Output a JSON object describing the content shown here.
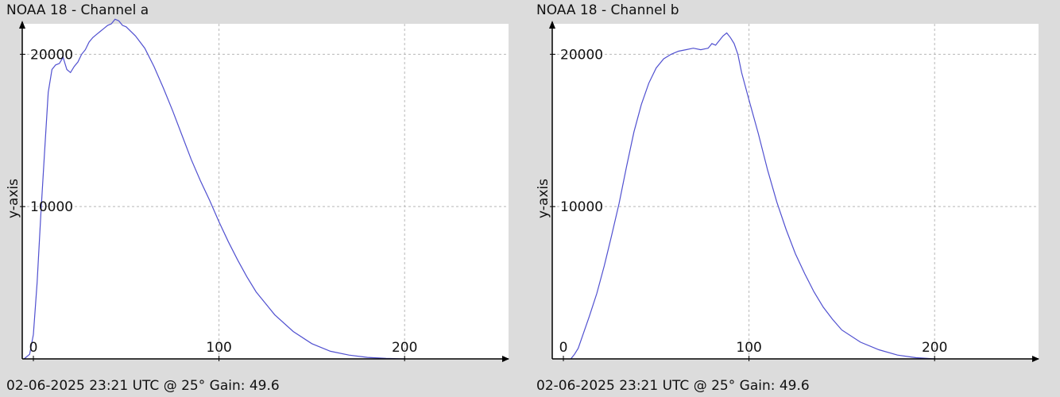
{
  "chart_data": [
    {
      "type": "line",
      "title": "NOAA 18 - Channel a",
      "ylabel": "y-axis",
      "footer": "02-06-2025 23:21 UTC @ 25° Gain: 49.6",
      "xlim": [
        -6,
        256
      ],
      "ylim": [
        0,
        22000
      ],
      "x_ticks": [
        {
          "value": 0,
          "label": "0"
        },
        {
          "value": 100,
          "label": "100"
        },
        {
          "value": 200,
          "label": "200"
        }
      ],
      "y_ticks": [
        {
          "value": 10000,
          "label": "10000"
        },
        {
          "value": 20000,
          "label": "20000"
        }
      ],
      "grid": true,
      "line_color": "#5050d0",
      "series": [
        {
          "x": [
            -5,
            -2,
            0,
            2,
            4,
            6,
            8,
            10,
            12,
            14,
            16,
            18,
            20,
            22,
            24,
            26,
            28,
            30,
            32,
            34,
            36,
            38,
            40,
            42,
            44,
            46,
            48,
            50,
            55,
            60,
            65,
            70,
            75,
            80,
            85,
            90,
            95,
            100,
            105,
            110,
            115,
            120,
            130,
            140,
            150,
            160,
            170,
            180,
            190,
            200
          ],
          "y": [
            0,
            300,
            1600,
            5000,
            9500,
            13500,
            17500,
            19000,
            19300,
            19400,
            19800,
            19000,
            18800,
            19200,
            19500,
            20000,
            20300,
            20800,
            21100,
            21300,
            21500,
            21700,
            21900,
            22000,
            22300,
            22200,
            21900,
            21800,
            21200,
            20400,
            19200,
            17800,
            16300,
            14700,
            13100,
            11700,
            10400,
            9000,
            7700,
            6500,
            5400,
            4400,
            2900,
            1800,
            1000,
            500,
            250,
            100,
            30,
            0
          ]
        }
      ]
    },
    {
      "type": "line",
      "title": "NOAA 18 - Channel b",
      "ylabel": "y-axis",
      "footer": "02-06-2025 23:21 UTC @ 25° Gain: 49.6",
      "xlim": [
        -6,
        256
      ],
      "ylim": [
        0,
        22000
      ],
      "x_ticks": [
        {
          "value": 0,
          "label": "0"
        },
        {
          "value": 100,
          "label": "100"
        },
        {
          "value": 200,
          "label": "200"
        }
      ],
      "y_ticks": [
        {
          "value": 10000,
          "label": "10000"
        },
        {
          "value": 20000,
          "label": "20000"
        }
      ],
      "grid": true,
      "line_color": "#5050d0",
      "series": [
        {
          "x": [
            4,
            6,
            8,
            10,
            14,
            18,
            22,
            26,
            30,
            34,
            38,
            42,
            46,
            50,
            54,
            58,
            62,
            66,
            70,
            74,
            78,
            80,
            82,
            84,
            86,
            88,
            90,
            92,
            94,
            96,
            100,
            105,
            110,
            115,
            120,
            125,
            130,
            135,
            140,
            145,
            150,
            160,
            170,
            180,
            190,
            200
          ],
          "y": [
            0,
            300,
            700,
            1400,
            2800,
            4300,
            6100,
            8100,
            10200,
            12600,
            14900,
            16700,
            18100,
            19100,
            19700,
            20000,
            20200,
            20300,
            20400,
            20300,
            20400,
            20700,
            20600,
            20900,
            21200,
            21400,
            21100,
            20700,
            20000,
            18800,
            17000,
            14800,
            12400,
            10300,
            8500,
            6900,
            5600,
            4400,
            3400,
            2600,
            1900,
            1100,
            600,
            250,
            80,
            0
          ]
        }
      ]
    }
  ]
}
